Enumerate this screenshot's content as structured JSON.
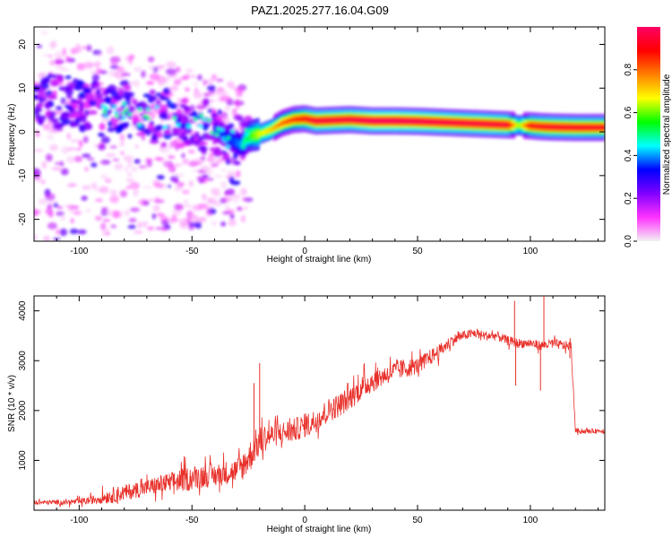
{
  "title": "PAZ1.2025.277.16.04.G09",
  "chart_data": [
    {
      "type": "heatmap",
      "name": "spectrogram",
      "xlabel": "Height of straight line (km)",
      "ylabel": "Frequency (Hz)",
      "xlim": [
        -120,
        133
      ],
      "ylim": [
        -25,
        24
      ],
      "xticks": [
        -100,
        -50,
        0,
        50,
        100
      ],
      "yticks": [
        -20,
        -10,
        0,
        10,
        20
      ],
      "grid": false,
      "ridge": {
        "x": [
          -115,
          -105,
          -95,
          -85,
          -75,
          -65,
          -55,
          -45,
          -38,
          -32,
          -28,
          -25,
          -20,
          -15,
          -10,
          -5,
          0,
          5,
          10,
          20,
          30,
          40,
          50,
          60,
          70,
          80,
          90,
          95,
          100,
          105,
          110,
          120,
          133
        ],
        "y": [
          8,
          7,
          6,
          5,
          4,
          3.5,
          3,
          1.5,
          0,
          -2,
          -3,
          -1,
          -0.5,
          0.5,
          2,
          2.8,
          3,
          2.5,
          2.6,
          2.8,
          2.5,
          2.5,
          2.4,
          2.2,
          2,
          1.8,
          1.6,
          1.5,
          1.4,
          1.2,
          1.1,
          1,
          1
        ],
        "amplitude": [
          0.15,
          0.18,
          0.2,
          0.22,
          0.25,
          0.28,
          0.3,
          0.3,
          0.3,
          0.35,
          0.4,
          0.55,
          0.65,
          0.7,
          0.8,
          0.85,
          0.9,
          0.95,
          0.95,
          0.95,
          0.98,
          0.98,
          0.97,
          0.96,
          0.95,
          0.95,
          0.94,
          0.6,
          0.9,
          0.92,
          0.93,
          0.93,
          0.92
        ]
      },
      "scatter_region": {
        "x": [
          -120,
          -25
        ],
        "y": [
          -25,
          24
        ],
        "max_amplitude": 0.3
      }
    },
    {
      "type": "colorbar",
      "label": "Normalized spectral amplitude",
      "range": [
        0,
        1
      ],
      "ticks": [
        "0.0",
        "0.2",
        "0.4",
        "0.6",
        "0.8"
      ],
      "tick_values": [
        0,
        0.2,
        0.4,
        0.6,
        0.8
      ],
      "colors": [
        "#f2f2f2",
        "#ff33ff",
        "#8000ff",
        "#0000ff",
        "#00ffff",
        "#00ff00",
        "#ffff00",
        "#ff8000",
        "#ff0000",
        "#ff0066"
      ]
    },
    {
      "type": "line",
      "name": "snr",
      "xlabel": "Height of straight line (km)",
      "ylabel": "SNR (10 * v/v)",
      "xlim": [
        -120,
        133
      ],
      "ylim": [
        0,
        4300
      ],
      "xticks": [
        -100,
        -50,
        0,
        50,
        100
      ],
      "yticks": [
        1000,
        2000,
        3000,
        4000
      ],
      "grid": false,
      "color": "#e8302a",
      "x": [
        -120,
        -110,
        -100,
        -95,
        -90,
        -85,
        -80,
        -75,
        -70,
        -65,
        -60,
        -55,
        -50,
        -45,
        -40,
        -35,
        -30,
        -28,
        -26,
        -24,
        -22,
        -20,
        -18,
        -15,
        -10,
        -5,
        0,
        5,
        10,
        15,
        20,
        25,
        30,
        35,
        40,
        45,
        50,
        55,
        60,
        65,
        70,
        75,
        80,
        85,
        90,
        95,
        100,
        105,
        110,
        115,
        118,
        120,
        125,
        133
      ],
      "y": [
        150,
        160,
        170,
        200,
        250,
        300,
        350,
        400,
        450,
        500,
        550,
        600,
        650,
        700,
        700,
        750,
        800,
        850,
        1000,
        1100,
        1300,
        1350,
        1450,
        1500,
        1550,
        1600,
        1700,
        1800,
        2000,
        2100,
        2250,
        2450,
        2600,
        2700,
        2800,
        2850,
        2900,
        3050,
        3200,
        3400,
        3500,
        3550,
        3500,
        3500,
        3400,
        3350,
        3350,
        3300,
        3350,
        3300,
        3300,
        1600,
        1580,
        1600
      ],
      "noise": [
        50,
        60,
        80,
        100,
        150,
        200,
        200,
        200,
        200,
        250,
        250,
        300,
        300,
        300,
        300,
        300,
        300,
        350,
        400,
        400,
        400,
        400,
        350,
        300,
        300,
        300,
        300,
        300,
        300,
        300,
        300,
        300,
        300,
        250,
        250,
        250,
        200,
        200,
        180,
        150,
        120,
        120,
        120,
        120,
        120,
        120,
        120,
        120,
        120,
        120,
        120,
        60,
        60,
        60
      ],
      "spikes": [
        {
          "x": -22.5,
          "y": 2550
        },
        {
          "x": -20,
          "y": 2950
        },
        {
          "x": 93,
          "y": 4200
        },
        {
          "x": 93.5,
          "y": 2500
        },
        {
          "x": 104.5,
          "y": 2400
        },
        {
          "x": 106,
          "y": 4300
        },
        {
          "x": 117.5,
          "y": 3050
        }
      ]
    }
  ]
}
